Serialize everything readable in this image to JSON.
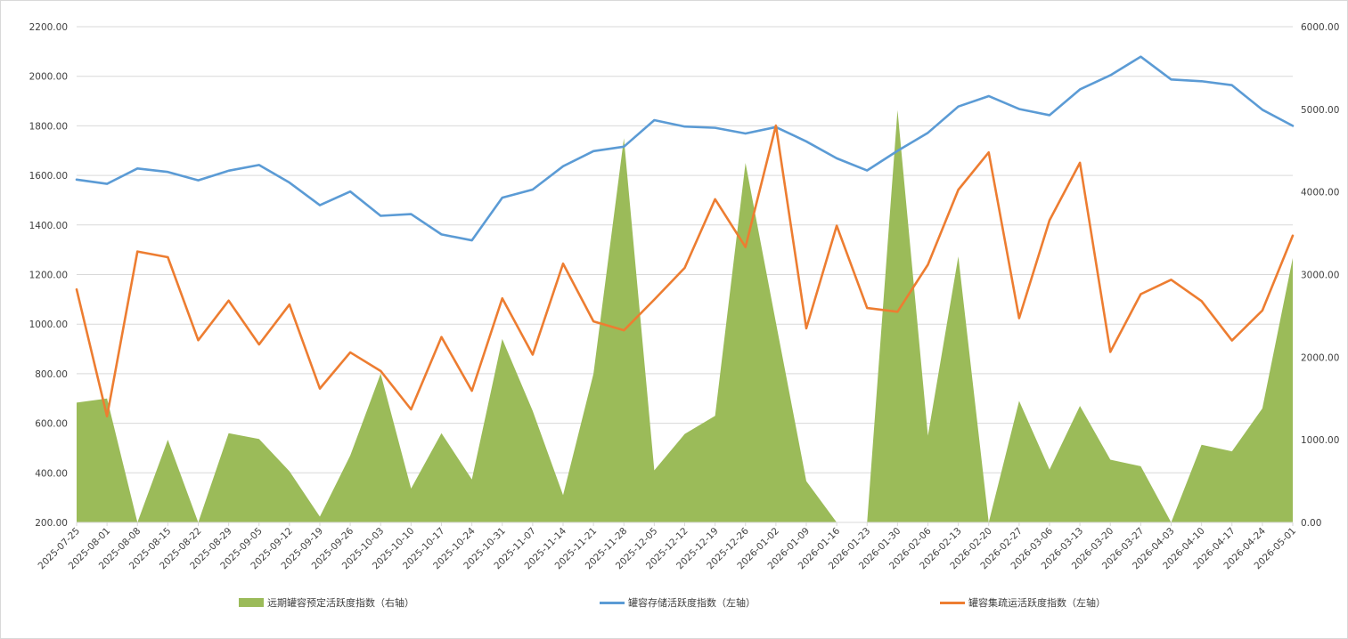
{
  "chart_data": {
    "type": "line",
    "categories": [
      "2025-07-25",
      "2025-08-01",
      "2025-08-08",
      "2025-08-15",
      "2025-08-22",
      "2025-08-29",
      "2025-09-05",
      "2025-09-12",
      "2025-09-19",
      "2025-09-26",
      "2025-10-03",
      "2025-10-10",
      "2025-10-17",
      "2025-10-24",
      "2025-10-31",
      "2025-11-07",
      "2025-11-14",
      "2025-11-21",
      "2025-11-28",
      "2025-12-05",
      "2025-12-12",
      "2025-12-19",
      "2025-12-26",
      "2026-01-02",
      "2026-01-09",
      "2026-01-16",
      "2026-01-23",
      "2026-01-30",
      "2026-02-06",
      "2026-02-13",
      "2026-02-20",
      "2026-02-27",
      "2026-03-06",
      "2026-03-13",
      "2026-03-20",
      "2026-03-27",
      "2026-04-03",
      "2026-04-10",
      "2026-04-17",
      "2026-04-24",
      "2026-05-01"
    ],
    "left_axis": {
      "ylim": [
        200,
        2200
      ],
      "ticks": [
        "200.00",
        "400.00",
        "600.00",
        "800.00",
        "1000.00",
        "1200.00",
        "1400.00",
        "1600.00",
        "1800.00",
        "2000.00",
        "2200.00"
      ]
    },
    "right_axis": {
      "ylim": [
        0,
        6000
      ],
      "ticks": [
        "0.00",
        "1000.00",
        "2000.00",
        "3000.00",
        "4000.00",
        "5000.00",
        "6000.00"
      ]
    },
    "grid": true,
    "legend_position": "bottom",
    "series": [
      {
        "name": "远期罐容预定活跃度指数（右轴）",
        "type": "area",
        "axis": "right",
        "color": "#9bbb59",
        "values": [
          1450,
          1500,
          0,
          1000,
          0,
          1080,
          1010,
          620,
          70,
          810,
          1800,
          410,
          1080,
          520,
          2220,
          1350,
          330,
          1800,
          4650,
          630,
          1070,
          1290,
          4350,
          2420,
          500,
          0,
          0,
          4990,
          1050,
          3220,
          0,
          1470,
          640,
          1410,
          760,
          680,
          0,
          940,
          860,
          1380,
          3200
        ]
      },
      {
        "name": "罐容存储活跃度指数（左轴）",
        "type": "line",
        "axis": "left",
        "color": "#5b9bd5",
        "values": [
          1583,
          1566,
          1628,
          1614,
          1580,
          1619,
          1642,
          1571,
          1480,
          1535,
          1437,
          1444,
          1362,
          1338,
          1510,
          1543,
          1637,
          1698,
          1716,
          1823,
          1797,
          1792,
          1769,
          1795,
          1737,
          1669,
          1620,
          1699,
          1772,
          1878,
          1920,
          1868,
          1843,
          1947,
          2004,
          2079,
          1987,
          1980,
          1964,
          1865,
          1800
        ]
      },
      {
        "name": "罐容集疏运活跃度指数（左轴）",
        "type": "line",
        "axis": "left",
        "color": "#ed7d31",
        "values": [
          1140,
          628,
          1293,
          1270,
          935,
          1095,
          918,
          1079,
          740,
          886,
          811,
          656,
          948,
          731,
          1104,
          877,
          1244,
          1011,
          975,
          1099,
          1227,
          1504,
          1311,
          1801,
          983,
          1397,
          1065,
          1050,
          1240,
          1542,
          1693,
          1024,
          1419,
          1651,
          888,
          1121,
          1179,
          1093,
          934,
          1055,
          1357
        ]
      }
    ]
  }
}
